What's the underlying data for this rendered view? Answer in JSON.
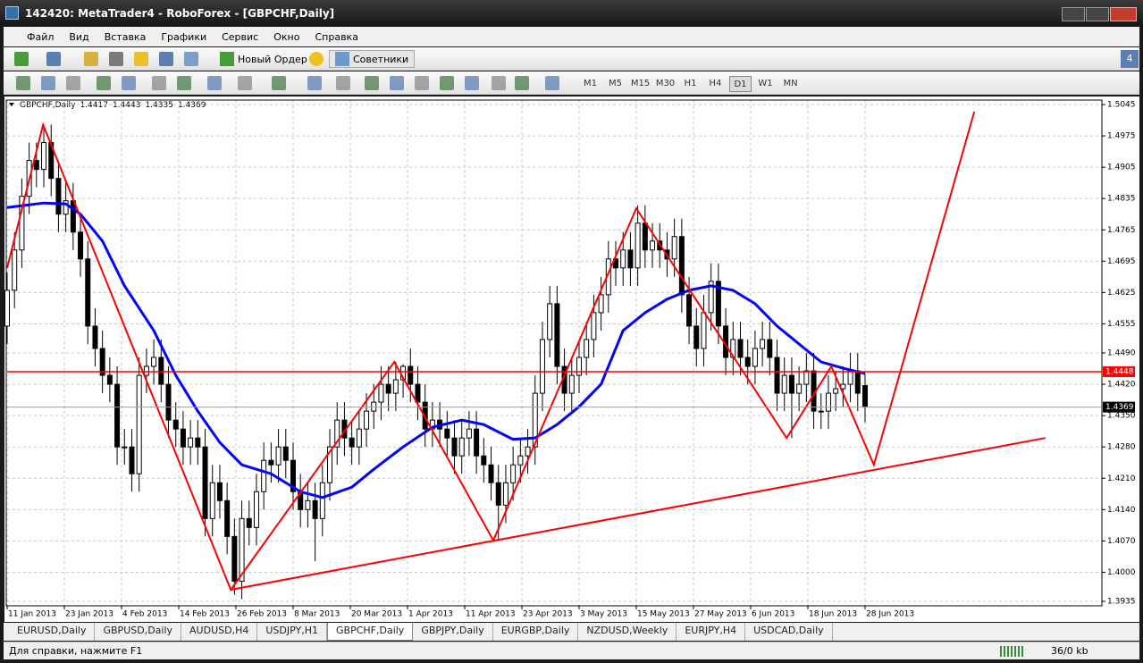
{
  "window": {
    "title": "142420: MetaTrader4 - RoboForex - [GBPCHF,Daily]"
  },
  "menu": [
    "Файл",
    "Вид",
    "Вставка",
    "Графики",
    "Сервис",
    "Окно",
    "Справка"
  ],
  "notification": "4",
  "toolbar": {
    "new_order": "Новый Ордер",
    "experts": "Советники",
    "timeframes": [
      "M1",
      "M5",
      "M15",
      "M30",
      "H1",
      "H4",
      "D1",
      "W1",
      "MN"
    ],
    "active_timeframe": 6
  },
  "chart_data": {
    "type": "candlestick",
    "symbol": "GBPCHF,Daily",
    "candles": [
      [
        1.455,
        1.467,
        1.451,
        1.463
      ],
      [
        1.463,
        1.476,
        1.459,
        1.472
      ],
      [
        1.472,
        1.488,
        1.468,
        1.484
      ],
      [
        1.484,
        1.496,
        1.48,
        1.492
      ],
      [
        1.492,
        1.496,
        1.486,
        1.49
      ],
      [
        1.49,
        1.5,
        1.486,
        1.496
      ],
      [
        1.496,
        1.5,
        1.484,
        1.488
      ],
      [
        1.488,
        1.492,
        1.476,
        1.48
      ],
      [
        1.48,
        1.487,
        1.476,
        1.483
      ],
      [
        1.483,
        1.487,
        1.472,
        1.476
      ],
      [
        1.476,
        1.48,
        1.466,
        1.47
      ],
      [
        1.47,
        1.474,
        1.451,
        1.455
      ],
      [
        1.455,
        1.459,
        1.446,
        1.45
      ],
      [
        1.45,
        1.454,
        1.44,
        1.444
      ],
      [
        1.444,
        1.448,
        1.438,
        1.442
      ],
      [
        1.442,
        1.446,
        1.424,
        1.428
      ],
      [
        1.428,
        1.432,
        1.424,
        1.428
      ],
      [
        1.428,
        1.432,
        1.418,
        1.422
      ],
      [
        1.422,
        1.448,
        1.418,
        1.444
      ],
      [
        1.444,
        1.45,
        1.44,
        1.446
      ],
      [
        1.446,
        1.452,
        1.442,
        1.448
      ],
      [
        1.448,
        1.452,
        1.438,
        1.442
      ],
      [
        1.442,
        1.446,
        1.43,
        1.434
      ],
      [
        1.434,
        1.438,
        1.428,
        1.432
      ],
      [
        1.432,
        1.436,
        1.424,
        1.428
      ],
      [
        1.428,
        1.434,
        1.424,
        1.43
      ],
      [
        1.43,
        1.434,
        1.424,
        1.428
      ],
      [
        1.428,
        1.432,
        1.408,
        1.412
      ],
      [
        1.412,
        1.424,
        1.408,
        1.42
      ],
      [
        1.42,
        1.424,
        1.412,
        1.416
      ],
      [
        1.416,
        1.42,
        1.404,
        1.408
      ],
      [
        1.408,
        1.412,
        1.395,
        1.398
      ],
      [
        1.398,
        1.416,
        1.394,
        1.412
      ],
      [
        1.412,
        1.416,
        1.406,
        1.41
      ],
      [
        1.41,
        1.422,
        1.406,
        1.418
      ],
      [
        1.418,
        1.429,
        1.414,
        1.425
      ],
      [
        1.425,
        1.429,
        1.42,
        1.424
      ],
      [
        1.424,
        1.432,
        1.42,
        1.428
      ],
      [
        1.428,
        1.432,
        1.421,
        1.425
      ],
      [
        1.425,
        1.429,
        1.414,
        1.418
      ],
      [
        1.418,
        1.422,
        1.41,
        1.414
      ],
      [
        1.414,
        1.42,
        1.41,
        1.416
      ],
      [
        1.416,
        1.42,
        1.4025,
        1.412
      ],
      [
        1.412,
        1.424,
        1.408,
        1.42
      ],
      [
        1.42,
        1.432,
        1.416,
        1.428
      ],
      [
        1.428,
        1.438,
        1.424,
        1.434
      ],
      [
        1.434,
        1.438,
        1.426,
        1.43
      ],
      [
        1.43,
        1.434,
        1.424,
        1.428
      ],
      [
        1.428,
        1.436,
        1.424,
        1.432
      ],
      [
        1.432,
        1.44,
        1.428,
        1.436
      ],
      [
        1.436,
        1.442,
        1.432,
        1.438
      ],
      [
        1.438,
        1.446,
        1.434,
        1.442
      ],
      [
        1.442,
        1.446,
        1.436,
        1.44
      ],
      [
        1.44,
        1.447,
        1.436,
        1.443
      ],
      [
        1.443,
        1.4465,
        1.439,
        1.446
      ],
      [
        1.446,
        1.45,
        1.438,
        1.442
      ],
      [
        1.442,
        1.446,
        1.434,
        1.438
      ],
      [
        1.438,
        1.442,
        1.428,
        1.432
      ],
      [
        1.432,
        1.438,
        1.428,
        1.434
      ],
      [
        1.434,
        1.438,
        1.428,
        1.432
      ],
      [
        1.432,
        1.436,
        1.426,
        1.43
      ],
      [
        1.43,
        1.434,
        1.422,
        1.426
      ],
      [
        1.426,
        1.434,
        1.422,
        1.43
      ],
      [
        1.43,
        1.436,
        1.426,
        1.432
      ],
      [
        1.432,
        1.436,
        1.422,
        1.426
      ],
      [
        1.426,
        1.43,
        1.42,
        1.424
      ],
      [
        1.424,
        1.428,
        1.416,
        1.42
      ],
      [
        1.42,
        1.424,
        1.407,
        1.415
      ],
      [
        1.415,
        1.424,
        1.411,
        1.42
      ],
      [
        1.42,
        1.428,
        1.416,
        1.424
      ],
      [
        1.424,
        1.43,
        1.42,
        1.426
      ],
      [
        1.426,
        1.432,
        1.422,
        1.428
      ],
      [
        1.428,
        1.444,
        1.424,
        1.44
      ],
      [
        1.44,
        1.456,
        1.436,
        1.452
      ],
      [
        1.452,
        1.464,
        1.448,
        1.46
      ],
      [
        1.46,
        1.464,
        1.442,
        1.446
      ],
      [
        1.446,
        1.45,
        1.436,
        1.44
      ],
      [
        1.44,
        1.448,
        1.436,
        1.444
      ],
      [
        1.444,
        1.452,
        1.44,
        1.448
      ],
      [
        1.448,
        1.456,
        1.444,
        1.452
      ],
      [
        1.452,
        1.462,
        1.448,
        1.458
      ],
      [
        1.458,
        1.466,
        1.454,
        1.462
      ],
      [
        1.462,
        1.474,
        1.458,
        1.47
      ],
      [
        1.47,
        1.474,
        1.464,
        1.468
      ],
      [
        1.468,
        1.476,
        1.464,
        1.472
      ],
      [
        1.472,
        1.476,
        1.464,
        1.468
      ],
      [
        1.468,
        1.482,
        1.464,
        1.478
      ],
      [
        1.478,
        1.482,
        1.468,
        1.472
      ],
      [
        1.472,
        1.478,
        1.468,
        1.474
      ],
      [
        1.474,
        1.478,
        1.468,
        1.472
      ],
      [
        1.472,
        1.476,
        1.466,
        1.47
      ],
      [
        1.47,
        1.479,
        1.466,
        1.475
      ],
      [
        1.475,
        1.479,
        1.458,
        1.462
      ],
      [
        1.462,
        1.466,
        1.451,
        1.455
      ],
      [
        1.455,
        1.459,
        1.446,
        1.45
      ],
      [
        1.45,
        1.462,
        1.446,
        1.458
      ],
      [
        1.458,
        1.469,
        1.454,
        1.465
      ],
      [
        1.465,
        1.469,
        1.451,
        1.455
      ],
      [
        1.455,
        1.459,
        1.444,
        1.448
      ],
      [
        1.448,
        1.456,
        1.444,
        1.452
      ],
      [
        1.452,
        1.456,
        1.444,
        1.448
      ],
      [
        1.448,
        1.452,
        1.442,
        1.446
      ],
      [
        1.446,
        1.454,
        1.442,
        1.45
      ],
      [
        1.45,
        1.456,
        1.446,
        1.452
      ],
      [
        1.452,
        1.456,
        1.444,
        1.448
      ],
      [
        1.448,
        1.452,
        1.436,
        1.44
      ],
      [
        1.44,
        1.448,
        1.436,
        1.444
      ],
      [
        1.444,
        1.448,
        1.43,
        1.44
      ],
      [
        1.44,
        1.446,
        1.436,
        1.442
      ],
      [
        1.442,
        1.449,
        1.438,
        1.445
      ],
      [
        1.445,
        1.449,
        1.432,
        1.436
      ],
      [
        1.436,
        1.44,
        1.432,
        1.436
      ],
      [
        1.436,
        1.444,
        1.432,
        1.44
      ],
      [
        1.44,
        1.445,
        1.436,
        1.441
      ],
      [
        1.441,
        1.446,
        1.437,
        1.442
      ],
      [
        1.442,
        1.449,
        1.438,
        1.445
      ],
      [
        1.445,
        1.449,
        1.436,
        1.44
      ],
      [
        1.4417,
        1.4443,
        1.4335,
        1.4369
      ]
    ],
    "ylim": [
      1.3935,
      1.5045
    ],
    "yticks": [
      1.5045,
      1.4975,
      1.4905,
      1.4835,
      1.4765,
      1.4695,
      1.4625,
      1.4555,
      {
        "value": 1.449,
        "label": "1.4490"
      },
      {
        "value": 1.442,
        "label": "1.4420"
      },
      {
        "value": 1.435,
        "label": "1.4350"
      },
      {
        "value": 1.428,
        "label": "1.4280"
      },
      {
        "value": 1.421,
        "label": "1.4210"
      },
      {
        "value": 1.414,
        "label": "1.4140"
      },
      {
        "value": 1.407,
        "label": "1.4070"
      },
      {
        "value": 1.4,
        "label": "1.4000"
      },
      1.3935
    ],
    "xlim": [
      0,
      149.3
    ],
    "xticks": [
      {
        "value": 0,
        "label": "11 Jan 2013"
      },
      {
        "value": 7.8,
        "label": "23 Jan 2013"
      },
      {
        "value": 15.6,
        "label": "4 Feb 2013"
      },
      {
        "value": 23.4,
        "label": "14 Feb 2013"
      },
      {
        "value": 31.2,
        "label": "26 Feb 2013"
      },
      {
        "value": 39,
        "label": "8 Mar 2013"
      },
      {
        "value": 46.8,
        "label": "20 Mar 2013"
      },
      {
        "value": 54.6,
        "label": "1 Apr 2013"
      },
      {
        "value": 62.4,
        "label": "11 Apr 2013"
      },
      {
        "value": 70.2,
        "label": "23 Apr 2013"
      },
      {
        "value": 78,
        "label": "3 May 2013"
      },
      {
        "value": 85.8,
        "label": "15 May 2013"
      },
      {
        "value": 93.6,
        "label": "27 May 2013"
      },
      {
        "value": 101.4,
        "label": "6 Jun 2013"
      },
      {
        "value": 109.2,
        "label": "18 Jun 2013"
      },
      {
        "value": 117,
        "label": "28 Jun 2013"
      }
    ],
    "grid": true,
    "bull_color": "#ffffff",
    "bear_color": "#000000",
    "ma": {
      "color": "#0000ff",
      "x": [
        0,
        5,
        8,
        10,
        13,
        16,
        20,
        23,
        26,
        29,
        32,
        36,
        40,
        43,
        47,
        50,
        54,
        58,
        62,
        65,
        69,
        72,
        75,
        78,
        81,
        84,
        87,
        90,
        93,
        96,
        99,
        102,
        105,
        108,
        111,
        114,
        117
      ],
      "values": [
        1.4815,
        1.4825,
        1.4823,
        1.48,
        1.474,
        1.464,
        1.454,
        1.444,
        1.436,
        1.429,
        1.424,
        1.422,
        1.418,
        1.4167,
        1.419,
        1.423,
        1.428,
        1.4324,
        1.434,
        1.433,
        1.4297,
        1.43,
        1.433,
        1.437,
        1.442,
        1.454,
        1.458,
        1.461,
        1.463,
        1.464,
        1.463,
        1.46,
        1.455,
        1.451,
        1.447,
        1.4456,
        1.4444
      ]
    },
    "zigzag": {
      "color": "#ff0000",
      "x": [
        0,
        4.9,
        30.5,
        52.8,
        66.3,
        85.8,
        106.3,
        112.4,
        118.2,
        131.9
      ],
      "values": [
        1.468,
        1.5,
        1.3961,
        1.447,
        1.4071,
        1.4813,
        1.43,
        1.446,
        1.424,
        1.5029
      ]
    },
    "trendline": {
      "color": "#ff0000",
      "x": [
        30.5,
        141.6
      ],
      "values": [
        1.3961,
        1.43
      ]
    },
    "hline": {
      "color": "#ff0000",
      "value": 1.4448
    }
  },
  "tabs": [
    "EURUSD,Daily",
    "GBPUSD,Daily",
    "AUDUSD,H4",
    "USDJPY,H1",
    "GBPCHF,Daily",
    "GBPJPY,Daily",
    "EURGBP,Daily",
    "NZDUSD,Weekly",
    "EURJPY,H4",
    "USDCAD,Daily"
  ],
  "active_tab": 4,
  "status": {
    "help": "Для справки, нажмите F1",
    "traffic": "36/0 kb"
  }
}
